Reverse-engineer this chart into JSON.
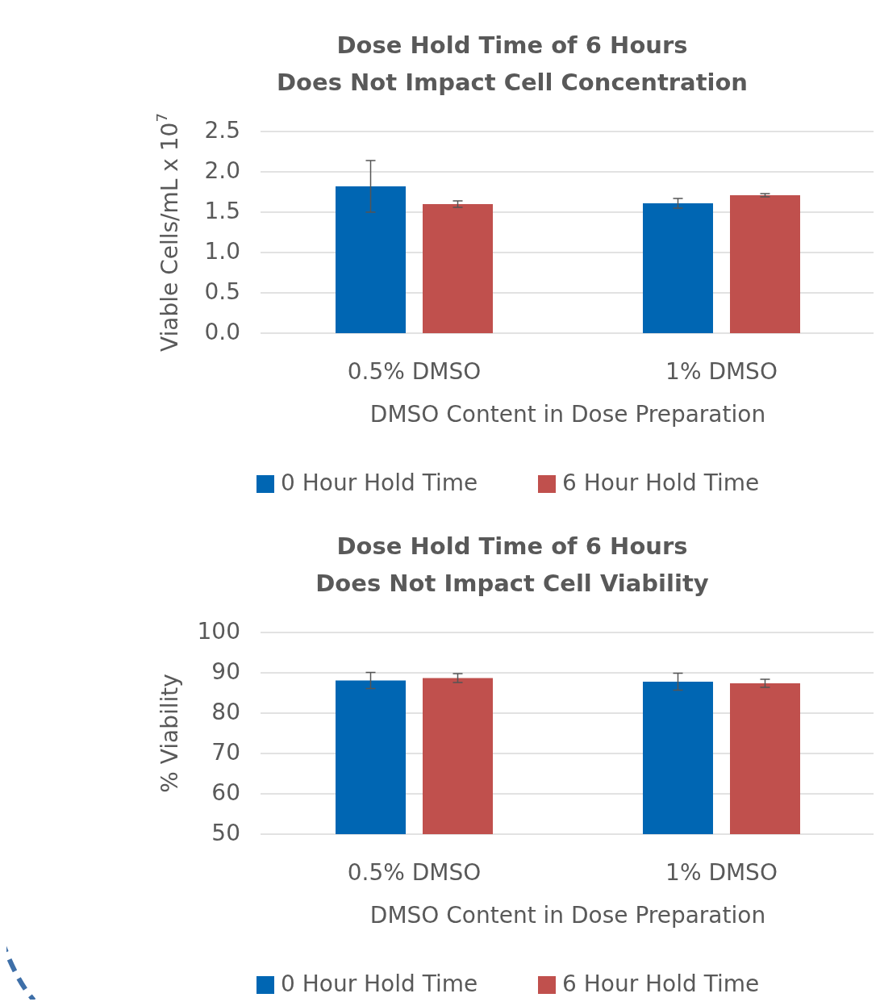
{
  "chart_data": [
    {
      "type": "bar",
      "title": "Dose Hold Time of 6 Hours\nDoes Not Impact Cell Concentration",
      "xlabel": "DMSO Content in Dose Preparation",
      "ylabel": "Viable Cells/mL x 10$^{7}$",
      "categories": [
        "0.5% DMSO",
        "1% DMSO"
      ],
      "series": [
        {
          "name": "0 Hour Hold Time",
          "color": "#0066b3",
          "values": [
            1.82,
            1.61
          ],
          "errors": [
            0.32,
            0.06
          ]
        },
        {
          "name": "6 Hour Hold Time",
          "color": "#c0504d",
          "values": [
            1.6,
            1.71
          ],
          "errors": [
            0.04,
            0.02
          ]
        }
      ],
      "ylim": [
        0,
        2.5
      ],
      "yticks": [
        {
          "value": 0,
          "label": "0.0"
        },
        {
          "value": 0.5,
          "label": "0.5"
        },
        {
          "value": 1,
          "label": "1.0"
        },
        {
          "value": 1.5,
          "label": "1.5"
        },
        {
          "value": 2,
          "label": "2.0"
        },
        {
          "value": 2.5,
          "label": "2.5"
        }
      ],
      "grid": "y",
      "legend": "bottom"
    },
    {
      "type": "bar",
      "title": "Dose Hold Time of 6 Hours\nDoes Not Impact Cell Viability",
      "xlabel": "DMSO Content in Dose Preparation",
      "ylabel": "% Viability",
      "categories": [
        "0.5% DMSO",
        "1% DMSO"
      ],
      "series": [
        {
          "name": "0 Hour Hold Time",
          "color": "#0066b3",
          "values": [
            88.1,
            87.8
          ],
          "errors": [
            2,
            2.1
          ]
        },
        {
          "name": "6 Hour Hold Time",
          "color": "#c0504d",
          "values": [
            88.7,
            87.4
          ],
          "errors": [
            1.1,
            1
          ]
        }
      ],
      "ylim": [
        50,
        100
      ],
      "yticks": [
        50,
        60,
        70,
        80,
        90,
        100
      ],
      "grid": "y",
      "legend": "bottom"
    }
  ]
}
